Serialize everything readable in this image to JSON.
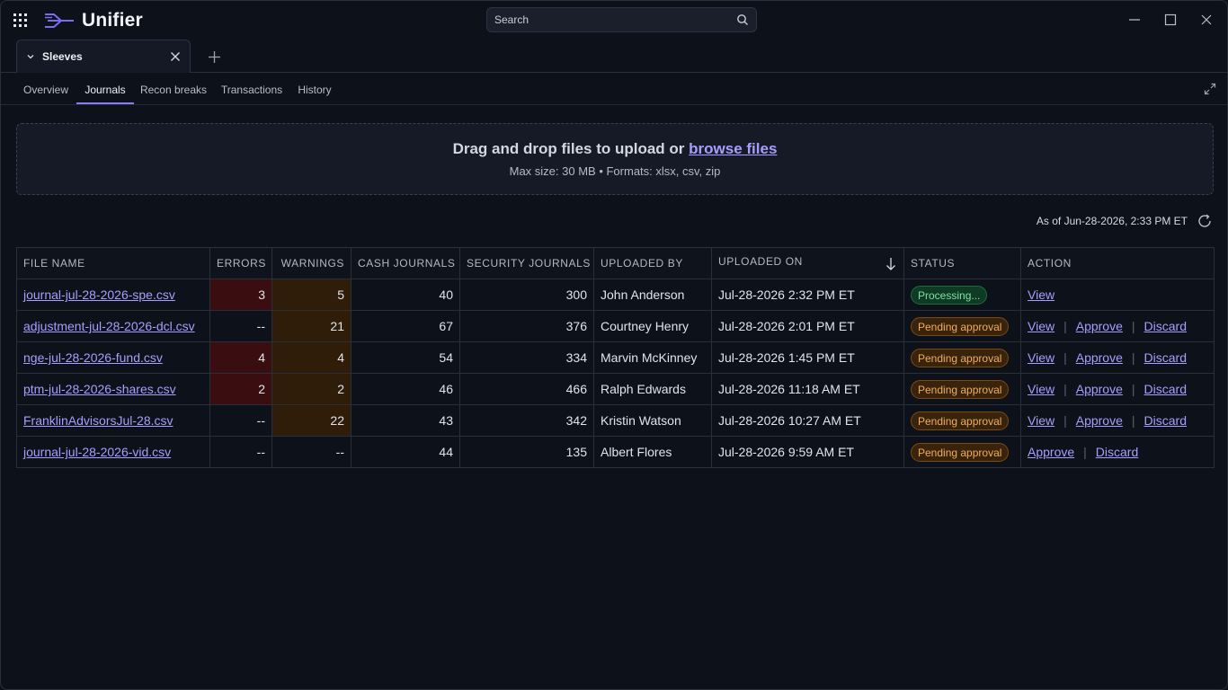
{
  "app": {
    "name": "Unifier"
  },
  "search": {
    "placeholder": "Search"
  },
  "tabs": {
    "active_label": "Sleeves"
  },
  "subnav": {
    "items": [
      "Overview",
      "Journals",
      "Recon breaks",
      "Transactions",
      "History"
    ],
    "active_index": 1
  },
  "upload": {
    "prompt": "Drag and drop files to upload or ",
    "browse_label": "browse files",
    "limits": "Max size: 30 MB  •  Formats: xlsx, csv, zip"
  },
  "as_of": "As of Jun-28-2026, 2:33 PM ET",
  "table": {
    "columns": [
      "FILE NAME",
      "ERRORS",
      "WARNINGS",
      "CASH JOURNALS",
      "SECURITY JOURNALS",
      "UPLOADED BY",
      "UPLOADED ON",
      "STATUS",
      "ACTION"
    ],
    "rows": [
      {
        "file": "journal-jul-28-2026-spe.csv",
        "errors": "3",
        "warnings": "5",
        "cash": "40",
        "security": "300",
        "by": "John Anderson",
        "on": "Jul-28-2026 2:32 PM ET",
        "status": "Processing...",
        "actions": [
          "View"
        ]
      },
      {
        "file": "adjustment-jul-28-2026-dcl.csv",
        "errors": "--",
        "warnings": "21",
        "cash": "67",
        "security": "376",
        "by": "Courtney Henry",
        "on": "Jul-28-2026 2:01 PM ET",
        "status": "Pending approval",
        "actions": [
          "View",
          "Approve",
          "Discard"
        ]
      },
      {
        "file": "nge-jul-28-2026-fund.csv",
        "errors": "4",
        "warnings": "4",
        "cash": "54",
        "security": "334",
        "by": "Marvin McKinney",
        "on": "Jul-28-2026 1:45 PM ET",
        "status": "Pending approval",
        "actions": [
          "View",
          "Approve",
          "Discard"
        ]
      },
      {
        "file": "ptm-jul-28-2026-shares.csv",
        "errors": "2",
        "warnings": "2",
        "cash": "46",
        "security": "466",
        "by": "Ralph Edwards",
        "on": "Jul-28-2026 11:18 AM ET",
        "status": "Pending approval",
        "actions": [
          "View",
          "Approve",
          "Discard"
        ]
      },
      {
        "file": "FranklinAdvisorsJul-28.csv",
        "errors": "--",
        "warnings": "22",
        "cash": "43",
        "security": "342",
        "by": "Kristin Watson",
        "on": "Jul-28-2026 10:27 AM ET",
        "status": "Pending approval",
        "actions": [
          "View",
          "Approve",
          "Discard"
        ]
      },
      {
        "file": "journal-jul-28-2026-vid.csv",
        "errors": "--",
        "warnings": "--",
        "cash": "44",
        "security": "135",
        "by": "Albert Flores",
        "on": "Jul-28-2026 9:59 AM ET",
        "status": "Pending approval",
        "actions": [
          "Approve",
          "Discard"
        ]
      }
    ]
  },
  "colors": {
    "accent": "#8b7cf6",
    "link": "#a99dff",
    "error_cell": "#3a0d10",
    "warning_cell": "#2f1d09",
    "processing": "#7ee2a6",
    "pending": "#f0ad5d"
  }
}
